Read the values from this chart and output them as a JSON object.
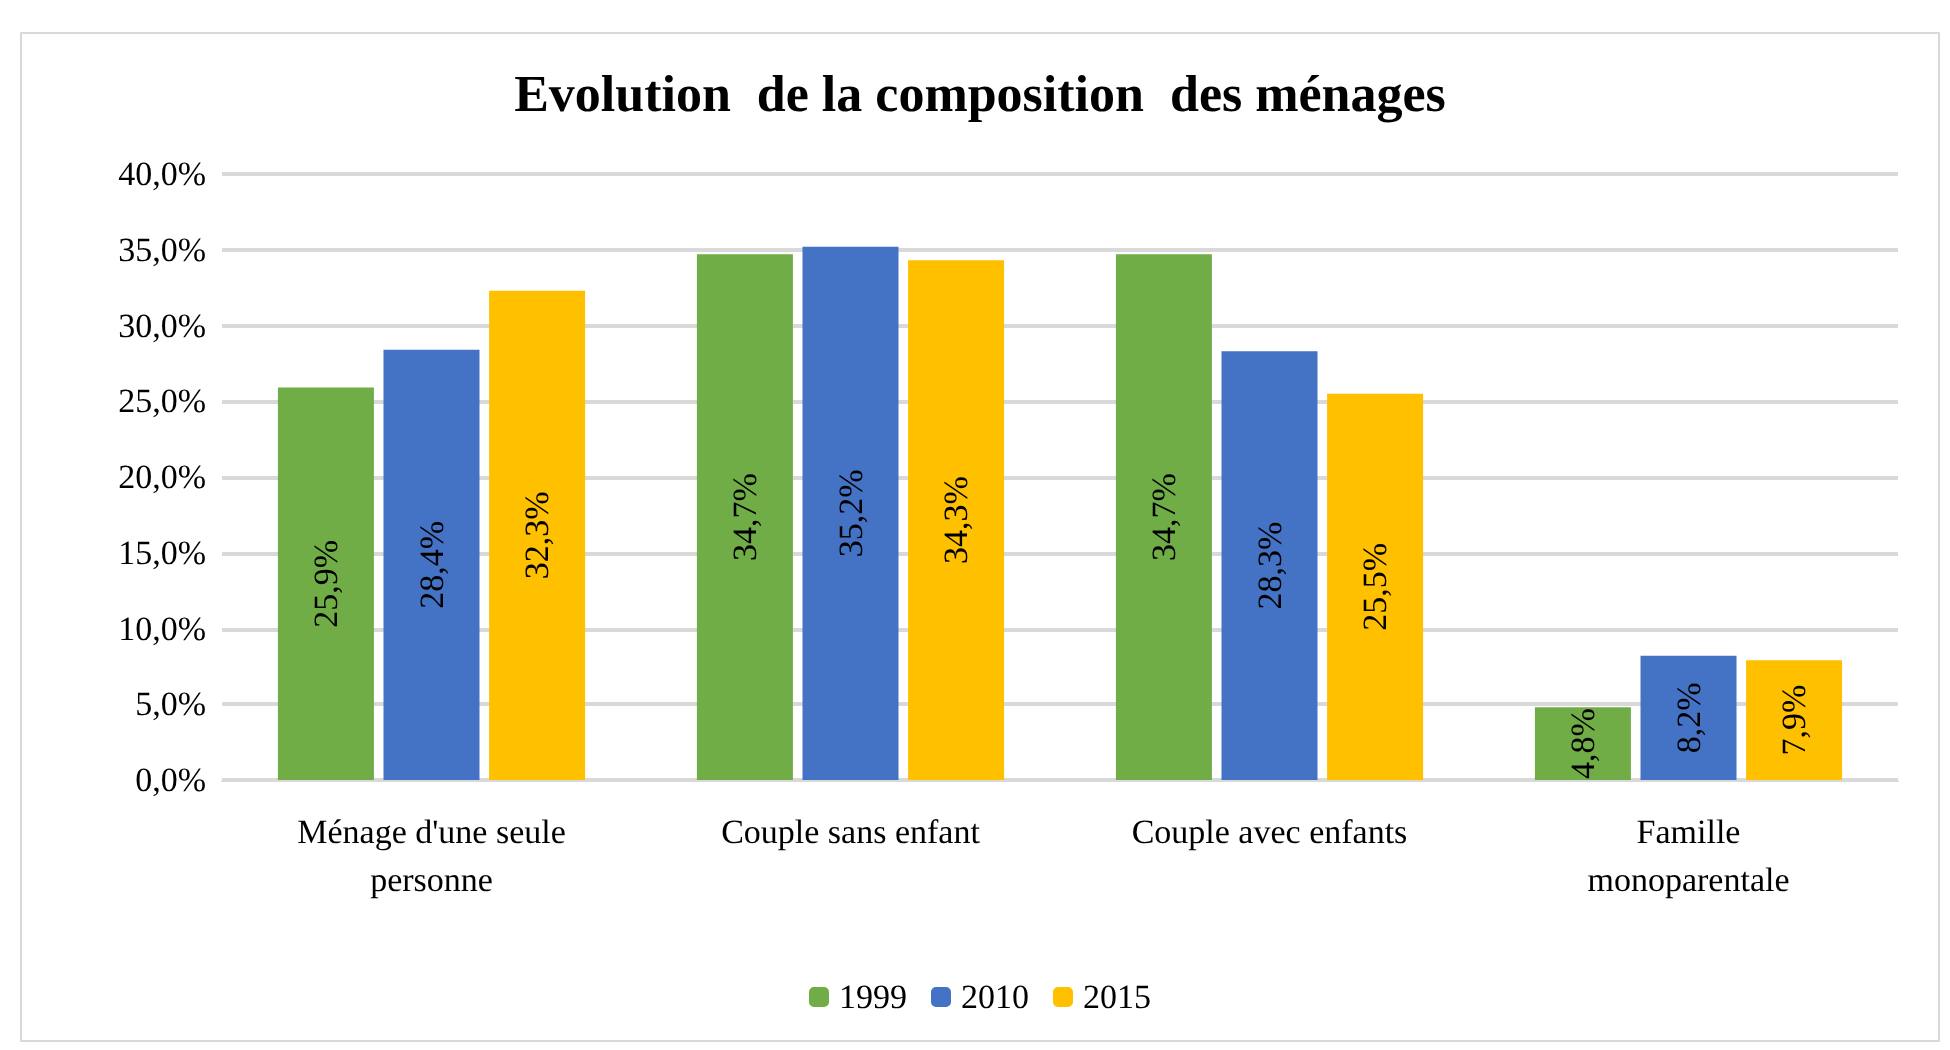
{
  "chart_data": {
    "type": "bar",
    "title": "Evolution  de la composition  des ménages",
    "categories": [
      "Ménage d'une seule\npersonne",
      "Couple sans enfant",
      "Couple avec enfants",
      "Famille\nmonoparentale"
    ],
    "series": [
      {
        "name": "1999",
        "color": "#70ad47",
        "values": [
          25.9,
          34.7,
          34.7,
          4.8
        ],
        "value_labels": [
          "25,9%",
          "34,7%",
          "34,7%",
          "4,8%"
        ]
      },
      {
        "name": "2010",
        "color": "#4472c4",
        "values": [
          28.4,
          35.2,
          28.3,
          8.2
        ],
        "value_labels": [
          "28,4%",
          "35,2%",
          "28,3%",
          "8,2%"
        ]
      },
      {
        "name": "2015",
        "color": "#ffc000",
        "values": [
          32.3,
          34.3,
          25.5,
          7.9
        ],
        "value_labels": [
          "32,3%",
          "34,3%",
          "25,5%",
          "7,9%"
        ]
      }
    ],
    "ylim": [
      0,
      40
    ],
    "yticks": [
      {
        "value": 0,
        "label": "0,0%"
      },
      {
        "value": 5,
        "label": "5,0%"
      },
      {
        "value": 10,
        "label": "10,0%"
      },
      {
        "value": 15,
        "label": "15,0%"
      },
      {
        "value": 20,
        "label": "20,0%"
      },
      {
        "value": 25,
        "label": "25,0%"
      },
      {
        "value": 30,
        "label": "30,0%"
      },
      {
        "value": 35,
        "label": "35,0%"
      },
      {
        "value": 40,
        "label": "40,0%"
      }
    ],
    "grid": "y",
    "legend": "bottom"
  }
}
